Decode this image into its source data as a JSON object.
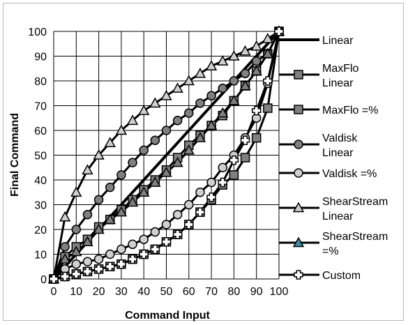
{
  "chart_data": {
    "type": "line",
    "xlabel": "Command Input",
    "ylabel": "Final Command",
    "xlim": [
      0,
      100
    ],
    "ylim": [
      0,
      100
    ],
    "x_ticks": [
      "0",
      "10",
      "20",
      "30",
      "40",
      "50",
      "60",
      "70",
      "80",
      "90",
      "100"
    ],
    "y_ticks": [
      "0",
      "10",
      "20",
      "30",
      "40",
      "50",
      "60",
      "70",
      "80",
      "90",
      "100"
    ],
    "grid": true,
    "legend_position": "right",
    "series": [
      {
        "name": "Linear",
        "marker": "none",
        "color": "#000000",
        "points": [
          [
            0,
            0
          ],
          [
            100,
            100
          ]
        ]
      },
      {
        "name": "MaxFlo Linear",
        "marker": "square",
        "fill": "#808080",
        "points": [
          [
            0,
            0
          ],
          [
            5,
            9
          ],
          [
            10,
            13
          ],
          [
            15,
            16
          ],
          [
            20,
            21
          ],
          [
            25,
            24
          ],
          [
            30,
            28
          ],
          [
            35,
            32
          ],
          [
            40,
            36
          ],
          [
            45,
            40
          ],
          [
            50,
            44
          ],
          [
            55,
            49
          ],
          [
            60,
            54
          ],
          [
            65,
            58
          ],
          [
            70,
            62
          ],
          [
            75,
            66
          ],
          [
            80,
            72
          ],
          [
            85,
            78
          ],
          [
            90,
            84
          ],
          [
            95,
            91
          ],
          [
            100,
            100
          ]
        ]
      },
      {
        "name": "MaxFlo =%",
        "marker": "square",
        "fill": "#808080",
        "points": [
          [
            0,
            0
          ],
          [
            5,
            1
          ],
          [
            10,
            2
          ],
          [
            15,
            3
          ],
          [
            20,
            4
          ],
          [
            25,
            5
          ],
          [
            30,
            6
          ],
          [
            35,
            8
          ],
          [
            40,
            10
          ],
          [
            45,
            12
          ],
          [
            50,
            15
          ],
          [
            55,
            18
          ],
          [
            60,
            22
          ],
          [
            65,
            27
          ],
          [
            70,
            32
          ],
          [
            75,
            38
          ],
          [
            80,
            42
          ],
          [
            85,
            49
          ],
          [
            90,
            57
          ],
          [
            95,
            69
          ],
          [
            100,
            100
          ]
        ]
      },
      {
        "name": "Valdisk Linear",
        "marker": "circle",
        "fill": "#808080",
        "points": [
          [
            0,
            0
          ],
          [
            5,
            13
          ],
          [
            10,
            20
          ],
          [
            15,
            26
          ],
          [
            20,
            32
          ],
          [
            25,
            37
          ],
          [
            30,
            42
          ],
          [
            35,
            47
          ],
          [
            40,
            52
          ],
          [
            45,
            56
          ],
          [
            50,
            60
          ],
          [
            55,
            64
          ],
          [
            60,
            67
          ],
          [
            65,
            71
          ],
          [
            70,
            74
          ],
          [
            75,
            77
          ],
          [
            80,
            80
          ],
          [
            85,
            83
          ],
          [
            90,
            88
          ],
          [
            95,
            91
          ],
          [
            100,
            100
          ]
        ]
      },
      {
        "name": "Valdisk =%",
        "marker": "circle",
        "fill": "#d0d0d0",
        "points": [
          [
            0,
            0
          ],
          [
            5,
            4
          ],
          [
            10,
            6
          ],
          [
            15,
            7
          ],
          [
            20,
            8
          ],
          [
            25,
            10
          ],
          [
            30,
            12
          ],
          [
            35,
            14
          ],
          [
            40,
            16
          ],
          [
            45,
            19
          ],
          [
            50,
            22
          ],
          [
            55,
            26
          ],
          [
            60,
            30
          ],
          [
            65,
            35
          ],
          [
            70,
            39
          ],
          [
            75,
            45
          ],
          [
            80,
            50
          ],
          [
            85,
            57
          ],
          [
            90,
            65
          ],
          [
            95,
            79
          ],
          [
            100,
            100
          ]
        ]
      },
      {
        "name": "ShearStream Linear",
        "marker": "triangle",
        "fill": "#d0d0d0",
        "points": [
          [
            0,
            0
          ],
          [
            5,
            25
          ],
          [
            10,
            35
          ],
          [
            15,
            44
          ],
          [
            20,
            50
          ],
          [
            25,
            55
          ],
          [
            30,
            60
          ],
          [
            35,
            64
          ],
          [
            40,
            68
          ],
          [
            45,
            71
          ],
          [
            50,
            74
          ],
          [
            55,
            77
          ],
          [
            60,
            80
          ],
          [
            65,
            83
          ],
          [
            70,
            86
          ],
          [
            75,
            88
          ],
          [
            80,
            90
          ],
          [
            85,
            92
          ],
          [
            90,
            94
          ],
          [
            95,
            97
          ],
          [
            100,
            100
          ]
        ]
      },
      {
        "name": "ShearStream =%",
        "marker": "triangle",
        "fill": "#808080",
        "points": [
          [
            0,
            0
          ],
          [
            5,
            8
          ],
          [
            10,
            11
          ],
          [
            15,
            15
          ],
          [
            20,
            20
          ],
          [
            25,
            24
          ],
          [
            30,
            27
          ],
          [
            35,
            31
          ],
          [
            40,
            35
          ],
          [
            45,
            39
          ],
          [
            50,
            43
          ],
          [
            55,
            47
          ],
          [
            60,
            52
          ],
          [
            65,
            57
          ],
          [
            70,
            62
          ],
          [
            75,
            67
          ],
          [
            80,
            72
          ],
          [
            85,
            78
          ],
          [
            90,
            84
          ],
          [
            95,
            91
          ],
          [
            100,
            100
          ]
        ]
      },
      {
        "name": "Custom",
        "marker": "cross",
        "fill": "#ffffff",
        "points": [
          [
            0,
            0
          ],
          [
            5,
            1
          ],
          [
            10,
            2
          ],
          [
            15,
            3
          ],
          [
            20,
            4
          ],
          [
            25,
            5
          ],
          [
            30,
            6
          ],
          [
            35,
            8
          ],
          [
            40,
            10
          ],
          [
            45,
            12
          ],
          [
            50,
            15
          ],
          [
            55,
            18
          ],
          [
            60,
            22
          ],
          [
            65,
            27
          ],
          [
            70,
            33
          ],
          [
            75,
            39
          ],
          [
            80,
            48
          ],
          [
            85,
            56
          ],
          [
            90,
            68
          ],
          [
            95,
            80
          ],
          [
            100,
            100
          ]
        ]
      }
    ]
  },
  "legend_labels": [
    [
      "Linear"
    ],
    [
      "MaxFlo",
      "Linear"
    ],
    [
      "MaxFlo =%"
    ],
    [
      "Valdisk",
      "Linear"
    ],
    [
      "Valdisk =%"
    ],
    [
      "ShearStream",
      "Linear"
    ],
    [
      "ShearStream",
      "=%"
    ],
    [
      "Custom"
    ]
  ],
  "colors": {
    "line": "#000000",
    "grid": "#000000",
    "marker_dark": "#808080",
    "marker_light": "#d0d0d0",
    "legend_triangle_teal": "#3a8fa0"
  }
}
